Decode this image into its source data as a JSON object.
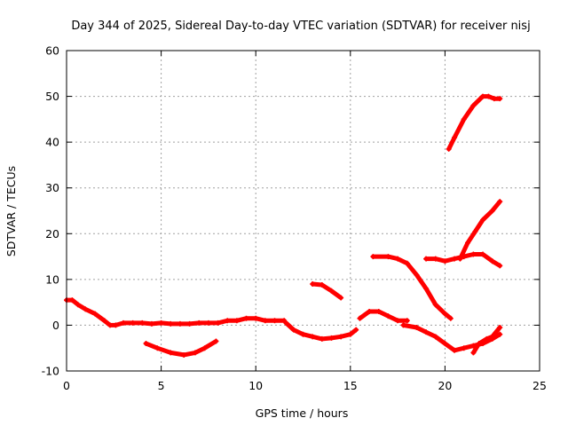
{
  "chart_data": {
    "type": "scatter",
    "title": "Day 344 of 2025, Sidereal Day-to-day VTEC variation (SDTVAR) for receiver nisj",
    "xlabel": "GPS time / hours",
    "ylabel": "SDTVAR / TECUs",
    "xlim": [
      0,
      25
    ],
    "ylim": [
      -10,
      60
    ],
    "xticks": [
      0,
      5,
      10,
      15,
      20,
      25
    ],
    "yticks": [
      -10,
      0,
      10,
      20,
      30,
      40,
      50,
      60
    ],
    "grid": true,
    "legend": "none",
    "marker_color": "#ff0000",
    "series": [
      {
        "x": [
          0.0,
          0.3,
          0.6,
          1.0,
          1.5,
          2.0,
          2.3,
          2.6,
          3.0,
          3.5,
          4.0,
          4.5,
          5.0,
          5.5,
          6.0,
          6.5,
          7.0,
          7.5,
          8.0,
          8.5,
          9.0,
          9.5,
          10.0,
          10.5,
          11.0,
          11.5
        ],
        "y": [
          5.5,
          5.5,
          4.5,
          3.5,
          2.5,
          1.0,
          0.0,
          0.0,
          0.5,
          0.5,
          0.5,
          0.3,
          0.5,
          0.3,
          0.3,
          0.3,
          0.5,
          0.5,
          0.5,
          1.0,
          1.0,
          1.5,
          1.5,
          1.0,
          1.0,
          1.0
        ]
      },
      {
        "x": [
          4.2,
          4.8,
          5.5,
          6.2,
          6.8,
          7.3,
          7.9
        ],
        "y": [
          -4.0,
          -5.0,
          -6.0,
          -6.5,
          -6.0,
          -5.0,
          -3.5
        ]
      },
      {
        "x": [
          11.6,
          12.0,
          12.5,
          13.0,
          13.5,
          14.0,
          14.5,
          15.0,
          15.3
        ],
        "y": [
          0.5,
          -1.0,
          -2.0,
          -2.5,
          -3.0,
          -2.8,
          -2.5,
          -2.0,
          -1.0
        ]
      },
      {
        "x": [
          13.0,
          13.5,
          14.0,
          14.5
        ],
        "y": [
          9.0,
          8.8,
          7.5,
          6.0
        ]
      },
      {
        "x": [
          15.5,
          16.0,
          16.5,
          17.0,
          17.5,
          18.0
        ],
        "y": [
          1.5,
          3.0,
          3.0,
          2.0,
          1.0,
          1.0
        ]
      },
      {
        "x": [
          16.2,
          17.0,
          17.5,
          18.0,
          18.5,
          19.0,
          19.5,
          20.0,
          20.3
        ],
        "y": [
          15.0,
          15.0,
          14.5,
          13.5,
          11.0,
          8.0,
          4.5,
          2.5,
          1.5
        ]
      },
      {
        "x": [
          17.8,
          18.5,
          19.0,
          19.5,
          20.0,
          20.5,
          21.0,
          21.5,
          22.0,
          22.5,
          22.9
        ],
        "y": [
          0.0,
          -0.5,
          -1.5,
          -2.5,
          -4.0,
          -5.5,
          -5.0,
          -4.5,
          -4.0,
          -3.0,
          -2.0
        ]
      },
      {
        "x": [
          21.5,
          21.8,
          22.2,
          22.5,
          22.9
        ],
        "y": [
          -6.0,
          -4.0,
          -3.0,
          -2.5,
          -0.5
        ]
      },
      {
        "x": [
          19.0,
          19.5,
          20.0,
          20.5,
          21.0,
          21.5,
          22.0,
          22.5,
          22.9
        ],
        "y": [
          14.5,
          14.5,
          14.0,
          14.5,
          15.0,
          15.5,
          15.5,
          14.0,
          13.0
        ]
      },
      {
        "x": [
          20.8,
          21.2,
          21.6,
          22.0,
          22.5,
          22.9
        ],
        "y": [
          14.5,
          18.0,
          20.5,
          23.0,
          25.0,
          27.0
        ]
      },
      {
        "x": [
          20.2,
          20.5,
          21.0,
          21.5,
          22.0,
          22.3,
          22.6,
          22.9
        ],
        "y": [
          38.5,
          41.0,
          45.0,
          48.0,
          50.0,
          50.0,
          49.5,
          49.5
        ]
      }
    ]
  }
}
